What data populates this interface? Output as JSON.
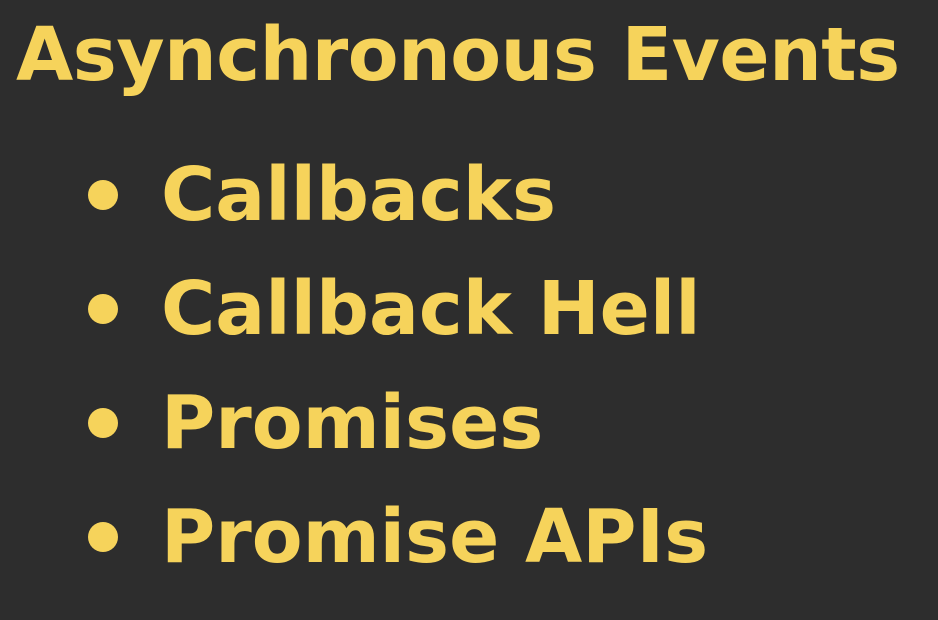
{
  "title": "Asynchronous Events",
  "items": [
    {
      "label": "Callbacks"
    },
    {
      "label": "Callback Hell"
    },
    {
      "label": "Promises"
    },
    {
      "label": "Promise APIs"
    }
  ],
  "colors": {
    "background": "#2d2d2d",
    "text": "#f6d35b"
  }
}
